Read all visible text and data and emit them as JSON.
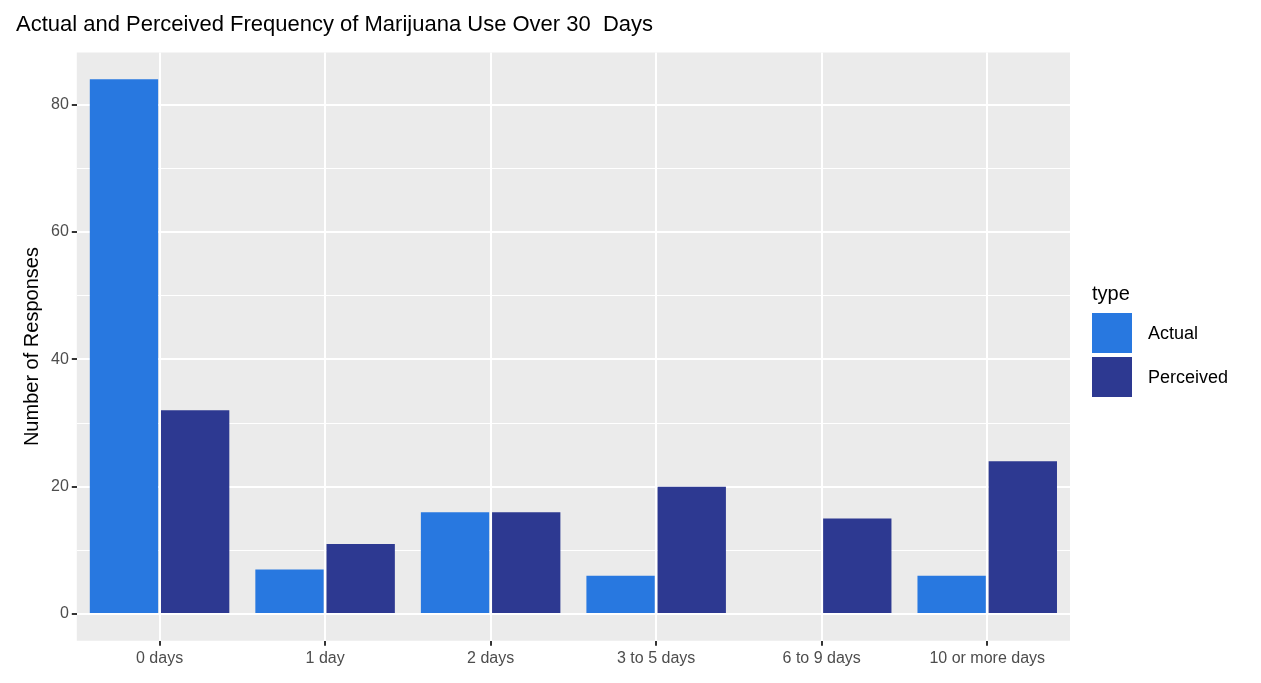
{
  "chart_data": {
    "type": "bar",
    "title": "Actual and Perceived Frequency of Marijuana Use Over 30  Days",
    "ylabel": "Number of Responses",
    "legend_title": "type",
    "categories": [
      "0 days",
      "1 day",
      "2 days",
      "3 to 5 days",
      "6 to 9 days",
      "10 or more days"
    ],
    "series": [
      {
        "name": "Actual",
        "color": "#2878e0",
        "values": [
          84,
          7,
          16,
          6,
          null,
          6
        ]
      },
      {
        "name": "Perceived",
        "color": "#2d3991",
        "values": [
          32,
          11,
          16,
          20,
          15,
          24
        ]
      }
    ],
    "ylim": [
      -4.2,
      88.2
    ],
    "yticks": [
      0,
      {
        "value": 10,
        "label": null
      },
      20,
      {
        "value": 30,
        "label": null
      },
      40,
      {
        "value": 50,
        "label": null
      },
      60,
      {
        "value": 70,
        "label": null
      },
      80
    ],
    "grid": true,
    "legend": "right"
  }
}
